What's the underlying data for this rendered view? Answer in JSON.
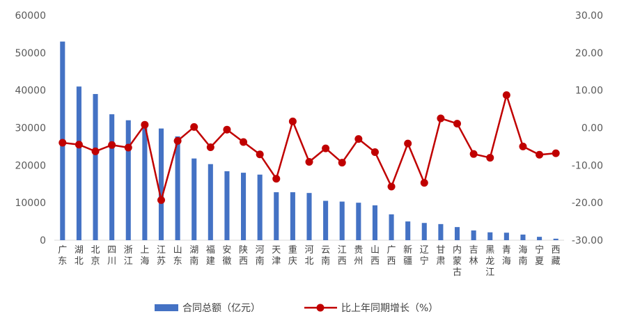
{
  "chart_data": {
    "type": "bar",
    "categories": [
      "广东",
      "湖北",
      "北京",
      "四川",
      "浙江",
      "上海",
      "江苏",
      "山东",
      "湖南",
      "福建",
      "安徽",
      "陕西",
      "河南",
      "天津",
      "重庆",
      "河北",
      "云南",
      "江西",
      "贵州",
      "山西",
      "广西",
      "新疆",
      "辽宁",
      "甘肃",
      "内蒙古",
      "吉林",
      "黑龙江",
      "青海",
      "海南",
      "宁夏",
      "西藏"
    ],
    "series": [
      {
        "name": "合同总额（亿元）",
        "type": "bar",
        "axis": "left",
        "color": "#4472C4",
        "values": [
          53000,
          41000,
          39000,
          33600,
          32000,
          30700,
          29800,
          27700,
          21800,
          20300,
          18400,
          18000,
          17500,
          12800,
          12800,
          12600,
          10500,
          10300,
          10000,
          9300,
          6900,
          5000,
          4600,
          4300,
          3500,
          2600,
          2100,
          2000,
          1500,
          900,
          400
        ]
      },
      {
        "name": "比上年同期增长（%）",
        "type": "line",
        "axis": "right",
        "color": "#C00000",
        "values": [
          -4.0,
          -4.5,
          -6.3,
          -4.6,
          -5.3,
          0.8,
          -19.3,
          -3.5,
          0.2,
          -5.2,
          -0.5,
          -3.8,
          -7.1,
          -13.6,
          1.7,
          -9.1,
          -5.5,
          -9.3,
          -3.0,
          -6.5,
          -15.7,
          -4.2,
          -14.7,
          2.5,
          1.1,
          -7.0,
          -8.0,
          8.7,
          -5.0,
          -7.2,
          -6.8
        ]
      }
    ],
    "y_left": {
      "min": 0,
      "max": 60000,
      "ticks": [
        "0",
        "10000",
        "20000",
        "30000",
        "40000",
        "50000",
        "60000"
      ]
    },
    "y_right": {
      "min": -30,
      "max": 30,
      "ticks": [
        "-30.00",
        "-20.00",
        "-10.00",
        "0.00",
        "10.00",
        "20.00",
        "30.00"
      ]
    },
    "grid": false,
    "legend_position": "bottom",
    "legend": [
      {
        "label": "合同总额（亿元）",
        "color": "#4472C4",
        "kind": "bar"
      },
      {
        "label": "比上年同期增长（%）",
        "color": "#C00000",
        "kind": "line"
      }
    ]
  }
}
